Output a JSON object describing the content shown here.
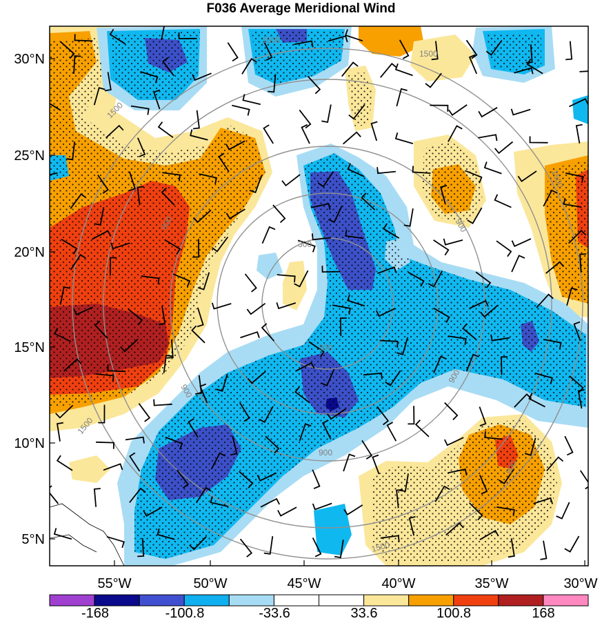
{
  "title": "F036 Average Meridional Wind",
  "lat_labels": [
    "30°N",
    "25°N",
    "20°N",
    "15°N",
    "10°N",
    "5°N"
  ],
  "lon_labels": [
    "55°W",
    "50°W",
    "45°W",
    "40°W",
    "35°W",
    "30°W"
  ],
  "colorbar": {
    "labels": [
      "-168",
      "-100.8",
      "-33.6",
      "33.6",
      "100.8",
      "168"
    ],
    "colors": [
      "#a040d0",
      "#0a0a8c",
      "#4050d0",
      "#10b0f0",
      "#a8dcf4",
      "#ffffff",
      "#ffffff",
      "#fbe79a",
      "#f7a000",
      "#f04010",
      "#b02020",
      "#ff88c0"
    ]
  },
  "contour_labels": [
    "1500",
    "1500",
    "1500",
    "1500",
    "1500",
    "1500",
    "900",
    "900",
    "900",
    "900",
    "900",
    "300",
    "300",
    "900"
  ],
  "palette": {
    "neg_light": "#a8dcf4",
    "neg_mid": "#10b8f0",
    "neg_strong": "#3c50c8",
    "neg_max": "#0a0a8c",
    "pos_light": "#fbe79a",
    "pos_mid": "#f7a000",
    "pos_strong": "#f04010",
    "pos_max": "#b02020",
    "ring": "#909090"
  }
}
